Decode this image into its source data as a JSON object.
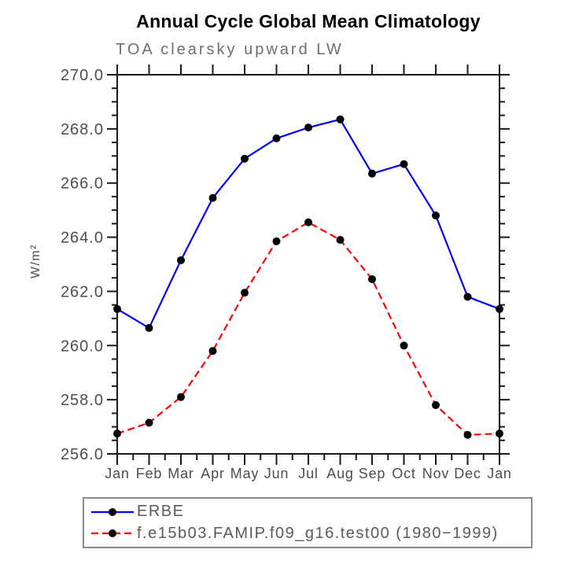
{
  "title": "Annual Cycle Global Mean Climatology",
  "subtitle": "TOA clearsky upward LW",
  "chart_data": {
    "type": "line",
    "title": "Annual Cycle Global Mean Climatology",
    "subtitle": "TOA clearsky upward LW",
    "xlabel": "",
    "ylabel": "W/m²",
    "categories": [
      "Jan",
      "Feb",
      "Mar",
      "Apr",
      "May",
      "Jun",
      "Jul",
      "Aug",
      "Sep",
      "Oct",
      "Nov",
      "Dec",
      "Jan"
    ],
    "series": [
      {
        "name": "ERBE",
        "color": "#0000ff",
        "line_style": "solid",
        "marker": "filled-circle",
        "values": [
          261.35,
          260.65,
          263.15,
          265.45,
          266.9,
          267.65,
          268.05,
          268.35,
          266.35,
          266.7,
          264.8,
          261.8,
          261.35
        ]
      },
      {
        "name": "f.e15b03.FAMIP.f09_g16.test00 (1980−1999)",
        "color": "#ff0000",
        "line_style": "dashed",
        "marker": "filled-circle",
        "values": [
          256.75,
          257.15,
          258.1,
          259.8,
          261.95,
          263.85,
          264.55,
          263.9,
          262.45,
          260.0,
          257.8,
          256.7,
          256.75
        ]
      }
    ],
    "ylim": [
      256.0,
      270.0
    ],
    "ytick_step": 2.0,
    "yminor_step": 0.5,
    "ytick_labels": [
      "256.0",
      "258.0",
      "260.0",
      "262.0",
      "264.0",
      "266.0",
      "268.0",
      "270.0"
    ],
    "marker_color": "#000000",
    "grid": false,
    "legend_position": "below-left"
  }
}
